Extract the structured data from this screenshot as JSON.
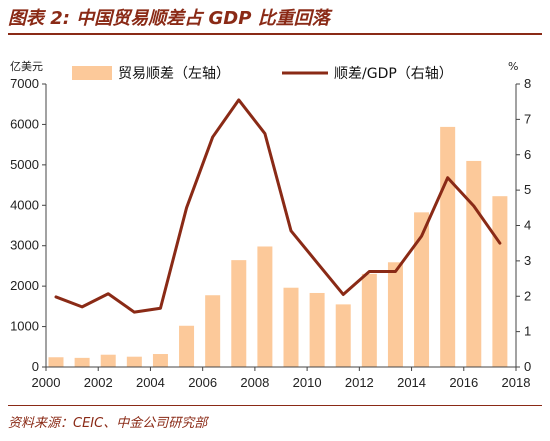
{
  "title": "图表 2:  中国贸易顺差占 GDP 比重回落",
  "source": "资料来源：CEIC、中金公司研究部",
  "chart_data": {
    "type": "bar+line",
    "left_unit": "亿美元",
    "right_unit": "%",
    "legend_position": "top",
    "colors": {
      "bar": "#fcc99a",
      "line": "#8a2a16"
    },
    "x": [
      2000,
      2001,
      2002,
      2003,
      2004,
      2005,
      2006,
      2007,
      2008,
      2009,
      2010,
      2011,
      2012,
      2013,
      2014,
      2015,
      2016,
      2017
    ],
    "x_ticks": [
      "2000",
      "2002",
      "2004",
      "2006",
      "2008",
      "2010",
      "2012",
      "2014",
      "2016",
      "2018"
    ],
    "y_left_ticks": [
      "0",
      "1000",
      "2000",
      "3000",
      "4000",
      "5000",
      "6000",
      "7000"
    ],
    "y_right_ticks": [
      "0",
      "1",
      "2",
      "3",
      "4",
      "5",
      "6",
      "7",
      "8"
    ],
    "ylim_left": [
      0,
      7000
    ],
    "ylim_right": [
      0,
      8
    ],
    "series": [
      {
        "name": "贸易顺差（左轴）",
        "type": "bar",
        "axis": "left",
        "values": [
          241,
          226,
          304,
          255,
          321,
          1020,
          1775,
          2643,
          2981,
          1961,
          1831,
          1549,
          2303,
          2590,
          3825,
          5939,
          5097,
          4225
        ]
      },
      {
        "name": "顺差/GDP（右轴）",
        "type": "line",
        "axis": "right",
        "values": [
          1.98,
          1.7,
          2.07,
          1.55,
          1.66,
          4.5,
          6.5,
          7.55,
          6.6,
          3.85,
          2.95,
          2.05,
          2.7,
          2.7,
          3.7,
          5.35,
          4.55,
          3.5
        ]
      }
    ]
  }
}
